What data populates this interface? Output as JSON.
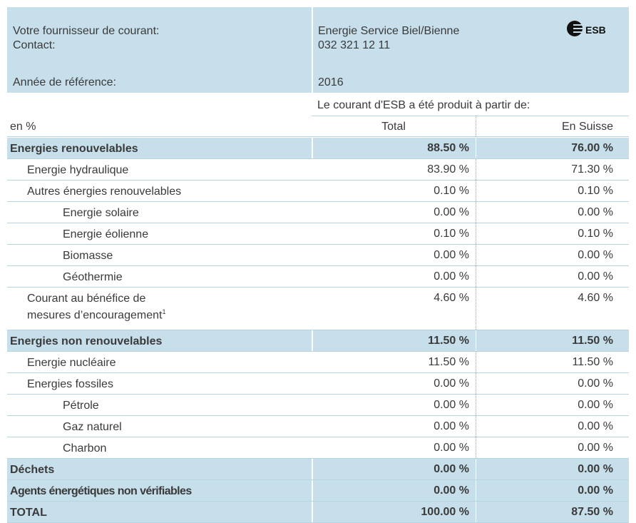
{
  "header": {
    "supplier_label": "Votre fournisseur de courant:",
    "contact_label": "Contact:",
    "supplier": "Energie Service Biel/Bienne",
    "contact": "032 321 12 11",
    "year_label": "Année de référence:",
    "year": "2016",
    "logo": "ESB"
  },
  "table": {
    "caption": "Le courant d'ESB a été produit à partir de:",
    "columns": [
      "en %",
      "Total",
      "En Suisse"
    ],
    "rows": [
      [
        "Energies renouvelables",
        "88.50 %",
        "76.00 %"
      ],
      [
        "Energie hydraulique",
        "83.90 %",
        "71.30 %"
      ],
      [
        "Autres énergies renouvelables",
        "0.10 %",
        "0.10 %"
      ],
      [
        "Energie solaire",
        "0.00 %",
        "0.00 %"
      ],
      [
        "Energie éolienne",
        "0.10 %",
        "0.10 %"
      ],
      [
        "Biomasse",
        "0.00 %",
        "0.00 %"
      ],
      [
        "Géothermie",
        "0.00 %",
        "0.00 %"
      ],
      [
        [
          "Courant au bénéfice de",
          "mesures d’encouragement"
        ],
        "4.60 %",
        "4.60 %"
      ],
      [
        "Energies non renouvelables",
        "11.50 %",
        "11.50 %"
      ],
      [
        "Energie nucléaire",
        "11.50 %",
        "11.50 %"
      ],
      [
        "Energies fossiles",
        "0.00 %",
        "0.00 %"
      ],
      [
        "Pétrole",
        "0.00 %",
        "0.00 %"
      ],
      [
        "Gaz naturel",
        "0.00 %",
        "0.00 %"
      ],
      [
        "Charbon",
        "0.00 %",
        "0.00 %"
      ],
      [
        "Déchets",
        "0.00 %",
        "0.00 %"
      ],
      [
        "Agents énergétiques non vérifiables",
        "0.00 %",
        "0.00 %"
      ],
      [
        "TOTAL",
        "100.00 %",
        "87.50 %"
      ]
    ],
    "footnote": "1"
  }
}
